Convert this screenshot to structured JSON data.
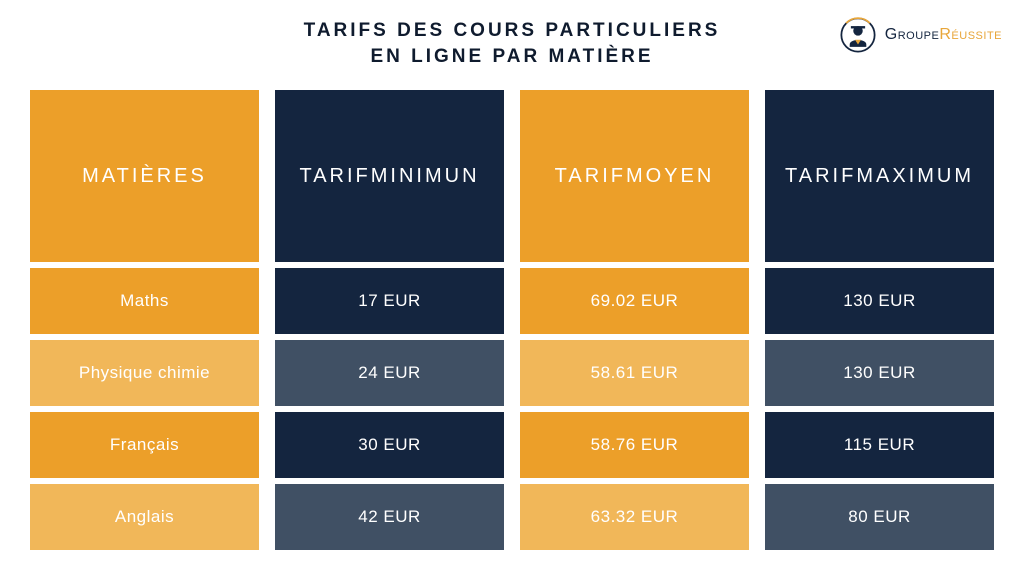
{
  "title": {
    "line1": "TARIFS DES COURS PARTICULIERS",
    "line2": "EN LIGNE PAR MATIÈRE"
  },
  "logo": {
    "word1": "Groupe",
    "word2": "Réussite",
    "icon_primary": "#14253f",
    "icon_accent": "#e8a63a"
  },
  "colors": {
    "orange_header": "#ec9f29",
    "orange_row_a": "#ec9f29",
    "orange_row_b": "#f1b759",
    "navy_header": "#14253f",
    "navy_row_a": "#14253f",
    "navy_row_b": "#405064",
    "text": "#ffffff",
    "title": "#0f1b2e"
  },
  "table": {
    "columns": [
      {
        "header": "MATIÈRES",
        "palette": "orange"
      },
      {
        "header": "TARIF\nMINIMUN",
        "palette": "navy"
      },
      {
        "header": "TARIF\nMOYEN",
        "palette": "orange"
      },
      {
        "header": "TARIF\nMAXIMUM",
        "palette": "navy"
      }
    ],
    "rows": [
      [
        "Maths",
        "17 EUR",
        "69.02 EUR",
        "130 EUR"
      ],
      [
        "Physique chimie",
        "24 EUR",
        "58.61 EUR",
        "130 EUR"
      ],
      [
        "Français",
        "30 EUR",
        "58.76 EUR",
        "115 EUR"
      ],
      [
        "Anglais",
        "42 EUR",
        "63.32 EUR",
        "80 EUR"
      ]
    ]
  }
}
